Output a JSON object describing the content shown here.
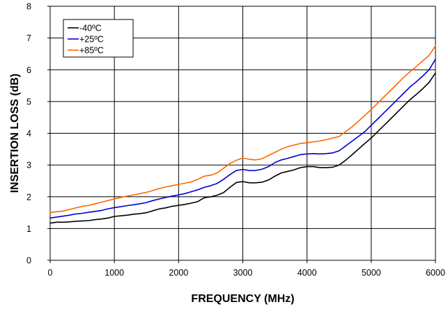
{
  "chart_data": {
    "type": "line",
    "xlabel": "FREQUENCY (MHz)",
    "ylabel": "INSERTION LOSS (dB)",
    "xlim": [
      0,
      6000
    ],
    "ylim": [
      0,
      8
    ],
    "xticks": [
      0,
      1000,
      2000,
      3000,
      4000,
      5000,
      6000
    ],
    "yticks": [
      0,
      1,
      2,
      3,
      4,
      5,
      6,
      7,
      8
    ],
    "grid": true,
    "legend_position": "top-left",
    "series": [
      {
        "name": "-40ºC",
        "color": "#000000",
        "x": [
          0,
          100,
          200,
          300,
          400,
          500,
          600,
          700,
          800,
          900,
          1000,
          1100,
          1200,
          1300,
          1400,
          1500,
          1600,
          1700,
          1800,
          1900,
          2000,
          2100,
          2200,
          2300,
          2400,
          2500,
          2600,
          2700,
          2800,
          2900,
          3000,
          3100,
          3200,
          3300,
          3400,
          3500,
          3600,
          3700,
          3800,
          3900,
          4000,
          4100,
          4200,
          4300,
          4400,
          4500,
          4600,
          4700,
          4800,
          4900,
          5000,
          5100,
          5200,
          5300,
          5400,
          5500,
          5600,
          5700,
          5800,
          5900,
          6000
        ],
        "y": [
          1.17,
          1.2,
          1.2,
          1.21,
          1.23,
          1.24,
          1.25,
          1.28,
          1.3,
          1.33,
          1.38,
          1.4,
          1.42,
          1.45,
          1.47,
          1.5,
          1.56,
          1.62,
          1.65,
          1.7,
          1.73,
          1.76,
          1.8,
          1.85,
          1.97,
          2.0,
          2.05,
          2.13,
          2.3,
          2.45,
          2.48,
          2.44,
          2.44,
          2.46,
          2.53,
          2.65,
          2.75,
          2.8,
          2.85,
          2.92,
          2.95,
          2.95,
          2.92,
          2.92,
          2.93,
          3.0,
          3.15,
          3.32,
          3.5,
          3.68,
          3.85,
          4.05,
          4.25,
          4.45,
          4.65,
          4.85,
          5.05,
          5.22,
          5.4,
          5.6,
          5.9
        ]
      },
      {
        "name": "+25ºC",
        "color": "#0000cc",
        "x": [
          0,
          100,
          200,
          300,
          400,
          500,
          600,
          700,
          800,
          900,
          1000,
          1100,
          1200,
          1300,
          1400,
          1500,
          1600,
          1700,
          1800,
          1900,
          2000,
          2100,
          2200,
          2300,
          2400,
          2500,
          2600,
          2700,
          2800,
          2900,
          3000,
          3100,
          3200,
          3300,
          3400,
          3500,
          3600,
          3700,
          3800,
          3900,
          4000,
          4100,
          4200,
          4300,
          4400,
          4500,
          4600,
          4700,
          4800,
          4900,
          5000,
          5100,
          5200,
          5300,
          5400,
          5500,
          5600,
          5700,
          5800,
          5900,
          6000
        ],
        "y": [
          1.33,
          1.36,
          1.39,
          1.42,
          1.46,
          1.48,
          1.51,
          1.54,
          1.57,
          1.62,
          1.66,
          1.69,
          1.72,
          1.75,
          1.78,
          1.82,
          1.88,
          1.93,
          1.98,
          2.02,
          2.06,
          2.1,
          2.16,
          2.22,
          2.3,
          2.35,
          2.42,
          2.55,
          2.7,
          2.83,
          2.86,
          2.83,
          2.83,
          2.87,
          2.95,
          3.08,
          3.16,
          3.21,
          3.27,
          3.33,
          3.35,
          3.36,
          3.35,
          3.36,
          3.38,
          3.45,
          3.6,
          3.75,
          3.9,
          4.05,
          4.25,
          4.45,
          4.65,
          4.85,
          5.05,
          5.25,
          5.45,
          5.62,
          5.8,
          6.0,
          6.33
        ]
      },
      {
        "name": "+85ºC",
        "color": "#ff6600",
        "x": [
          0,
          100,
          200,
          300,
          400,
          500,
          600,
          700,
          800,
          900,
          1000,
          1100,
          1200,
          1300,
          1400,
          1500,
          1600,
          1700,
          1800,
          1900,
          2000,
          2100,
          2200,
          2300,
          2400,
          2500,
          2600,
          2700,
          2800,
          2900,
          3000,
          3100,
          3200,
          3300,
          3400,
          3500,
          3600,
          3700,
          3800,
          3900,
          4000,
          4100,
          4200,
          4300,
          4400,
          4500,
          4600,
          4700,
          4800,
          4900,
          5000,
          5100,
          5200,
          5300,
          5400,
          5500,
          5600,
          5700,
          5800,
          5900,
          6000
        ],
        "y": [
          1.5,
          1.53,
          1.55,
          1.6,
          1.65,
          1.7,
          1.73,
          1.78,
          1.83,
          1.88,
          1.93,
          1.98,
          2.02,
          2.06,
          2.1,
          2.14,
          2.2,
          2.26,
          2.31,
          2.35,
          2.39,
          2.43,
          2.47,
          2.55,
          2.65,
          2.68,
          2.75,
          2.9,
          3.05,
          3.15,
          3.22,
          3.18,
          3.16,
          3.2,
          3.3,
          3.4,
          3.5,
          3.58,
          3.63,
          3.68,
          3.7,
          3.73,
          3.76,
          3.8,
          3.85,
          3.9,
          4.05,
          4.2,
          4.38,
          4.56,
          4.75,
          4.95,
          5.15,
          5.35,
          5.55,
          5.75,
          5.93,
          6.1,
          6.28,
          6.45,
          6.75
        ]
      }
    ]
  }
}
